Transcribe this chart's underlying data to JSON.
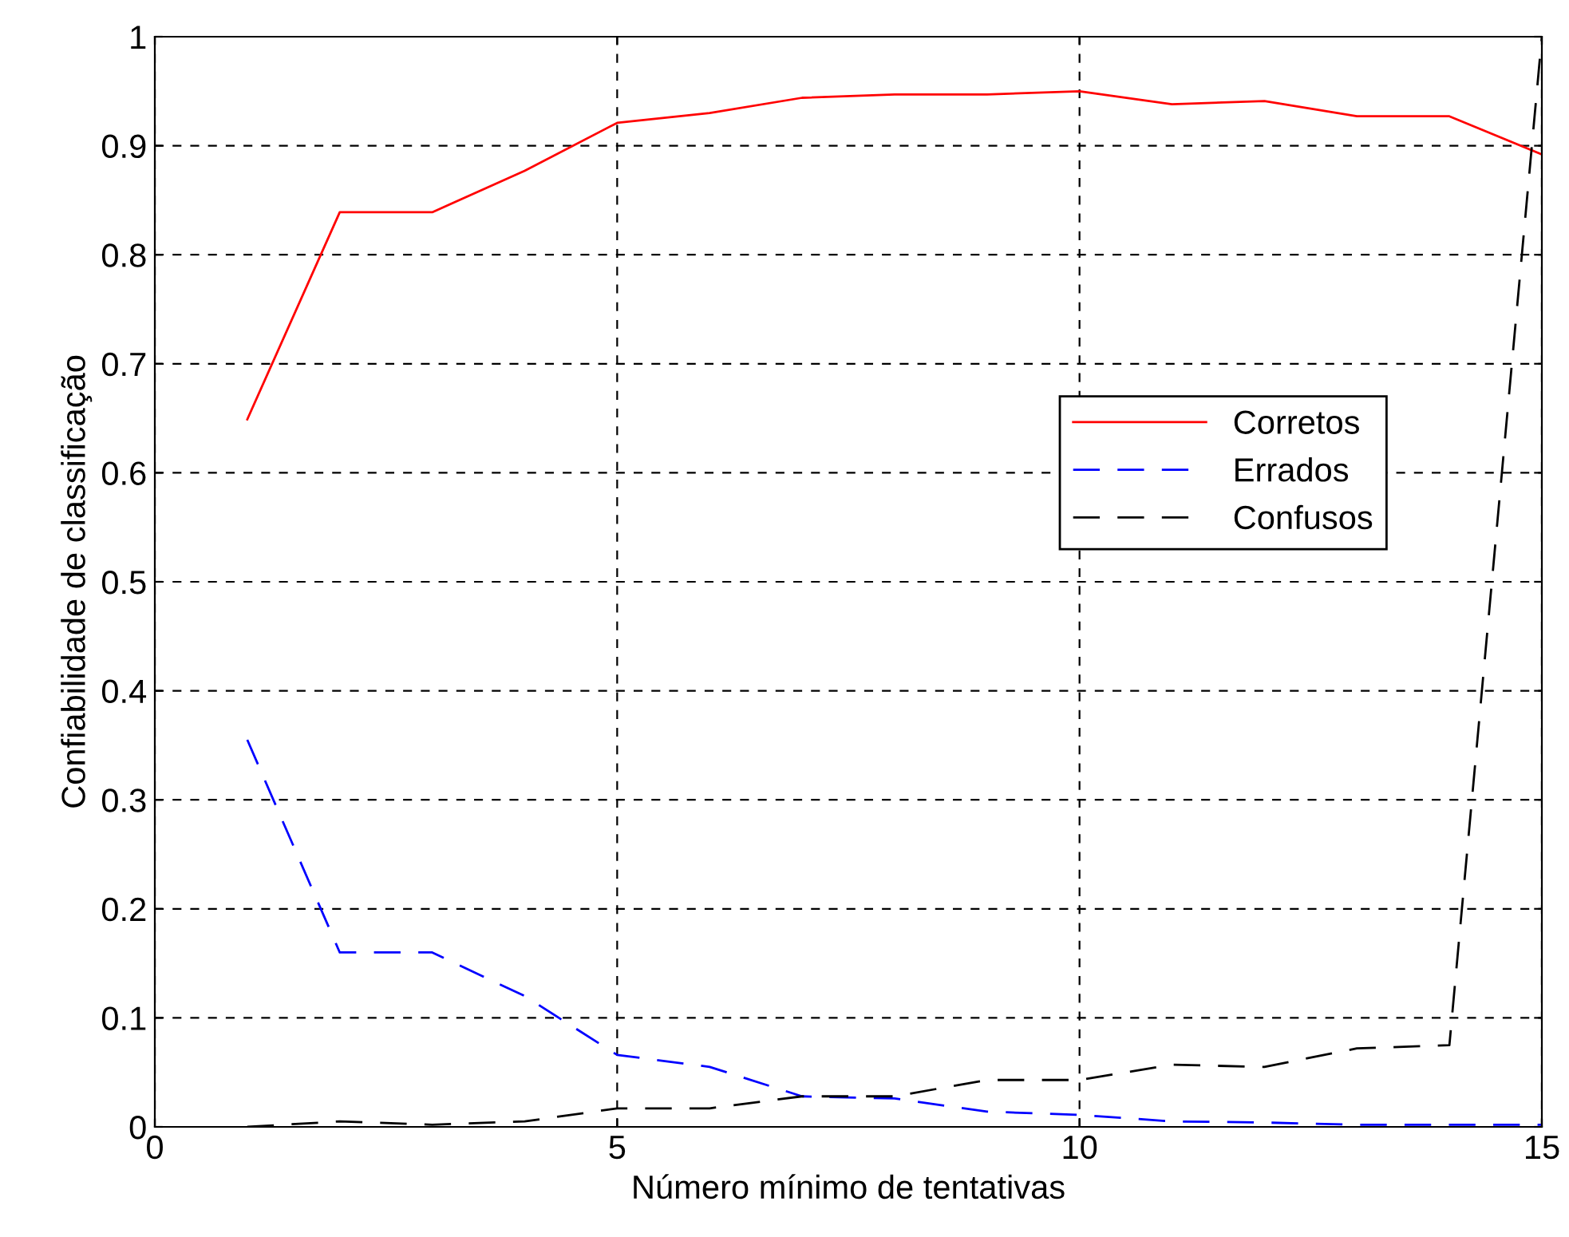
{
  "chart_data": {
    "type": "line",
    "xlabel": "Número mínimo de tentativas",
    "ylabel": "Confiabilidade de classificação",
    "x": [
      1,
      2,
      3,
      4,
      5,
      6,
      7,
      8,
      9,
      10,
      11,
      12,
      13,
      14,
      15
    ],
    "series": [
      {
        "name": "Corretos",
        "color": "#ff0000",
        "line_style": "solid",
        "values": [
          0.649,
          0.839,
          0.839,
          0.877,
          0.921,
          0.93,
          0.944,
          0.947,
          0.947,
          0.95,
          0.938,
          0.941,
          0.927,
          0.927,
          0.892
        ]
      },
      {
        "name": "Errados",
        "color": "#0000ff",
        "line_style": "dashed",
        "values": [
          0.355,
          0.16,
          0.16,
          0.12,
          0.066,
          0.055,
          0.028,
          0.026,
          0.014,
          0.011,
          0.005,
          0.004,
          0.002,
          0.002,
          0.002
        ]
      },
      {
        "name": "Confusos",
        "color": "#000000",
        "line_style": "dashed",
        "values": [
          0,
          0.005,
          0.002,
          0.005,
          0.017,
          0.017,
          0.028,
          0.028,
          0.043,
          0.043,
          0.057,
          0.055,
          0.072,
          0.075,
          1.0
        ]
      }
    ],
    "xlim": [
      0,
      15
    ],
    "xticks": [
      0,
      5,
      10,
      15
    ],
    "ylim": [
      0,
      1
    ],
    "yticks": [
      0,
      0.1,
      0.2,
      0.3,
      0.4,
      0.5,
      0.6,
      0.7,
      0.8,
      0.9,
      1
    ],
    "grid": true,
    "legend": "right"
  }
}
